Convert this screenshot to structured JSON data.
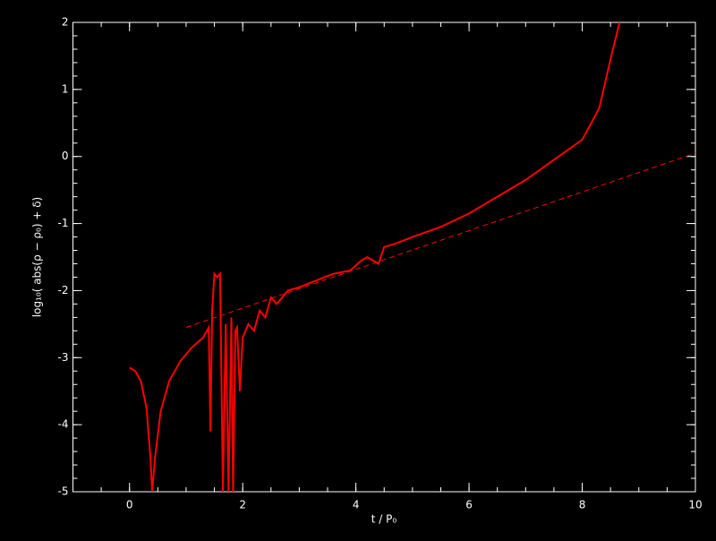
{
  "chart_data": {
    "type": "line",
    "xlabel": "t / P₀",
    "ylabel": "log₁₀( abs(ρ − ρ₀) + δ)",
    "xlim": [
      -1,
      10
    ],
    "ylim": [
      -5,
      2
    ],
    "xticks": [
      0,
      2,
      4,
      6,
      8,
      10
    ],
    "yticks": [
      -5,
      -4,
      -3,
      -2,
      -1,
      0,
      1,
      2
    ],
    "background": "#000000",
    "axis_color": "#ffffff",
    "series": [
      {
        "color": "#ff0000",
        "dashed": false,
        "x": [
          0,
          0.1,
          0.2,
          0.3,
          0.37,
          0.4,
          0.45,
          0.55,
          0.7,
          0.9,
          1.1,
          1.3,
          1.4,
          1.43,
          1.46,
          1.5,
          1.55,
          1.6,
          1.65,
          1.7,
          1.75,
          1.8,
          1.83,
          1.87,
          1.9,
          1.95,
          2.0,
          2.1,
          2.2,
          2.3,
          2.4,
          2.5,
          2.6,
          2.8,
          3.0,
          3.3,
          3.6,
          3.9,
          4.1,
          4.2,
          4.3,
          4.4,
          4.5,
          4.7,
          5.0,
          5.5,
          6.0,
          6.5,
          7.0,
          7.5,
          8.0,
          8.3,
          8.5,
          8.66
        ],
        "values": [
          -3.15,
          -3.2,
          -3.35,
          -3.75,
          -4.5,
          -5,
          -4.5,
          -3.8,
          -3.35,
          -3.05,
          -2.85,
          -2.7,
          -2.55,
          -4.1,
          -2.3,
          -1.75,
          -1.8,
          -1.75,
          -5,
          -2.5,
          -5,
          -2.4,
          -5,
          -2.6,
          -2.55,
          -3.5,
          -2.7,
          -2.5,
          -2.6,
          -2.3,
          -2.4,
          -2.1,
          -2.2,
          -2.0,
          -1.95,
          -1.85,
          -1.75,
          -1.7,
          -1.55,
          -1.5,
          -1.55,
          -1.6,
          -1.35,
          -1.3,
          -1.2,
          -1.05,
          -0.85,
          -0.6,
          -0.35,
          -0.05,
          0.25,
          0.72,
          1.45,
          2
        ]
      },
      {
        "color": "#ff0000",
        "dashed": true,
        "x": [
          1,
          10
        ],
        "values": [
          -2.55,
          0.05
        ]
      }
    ]
  }
}
